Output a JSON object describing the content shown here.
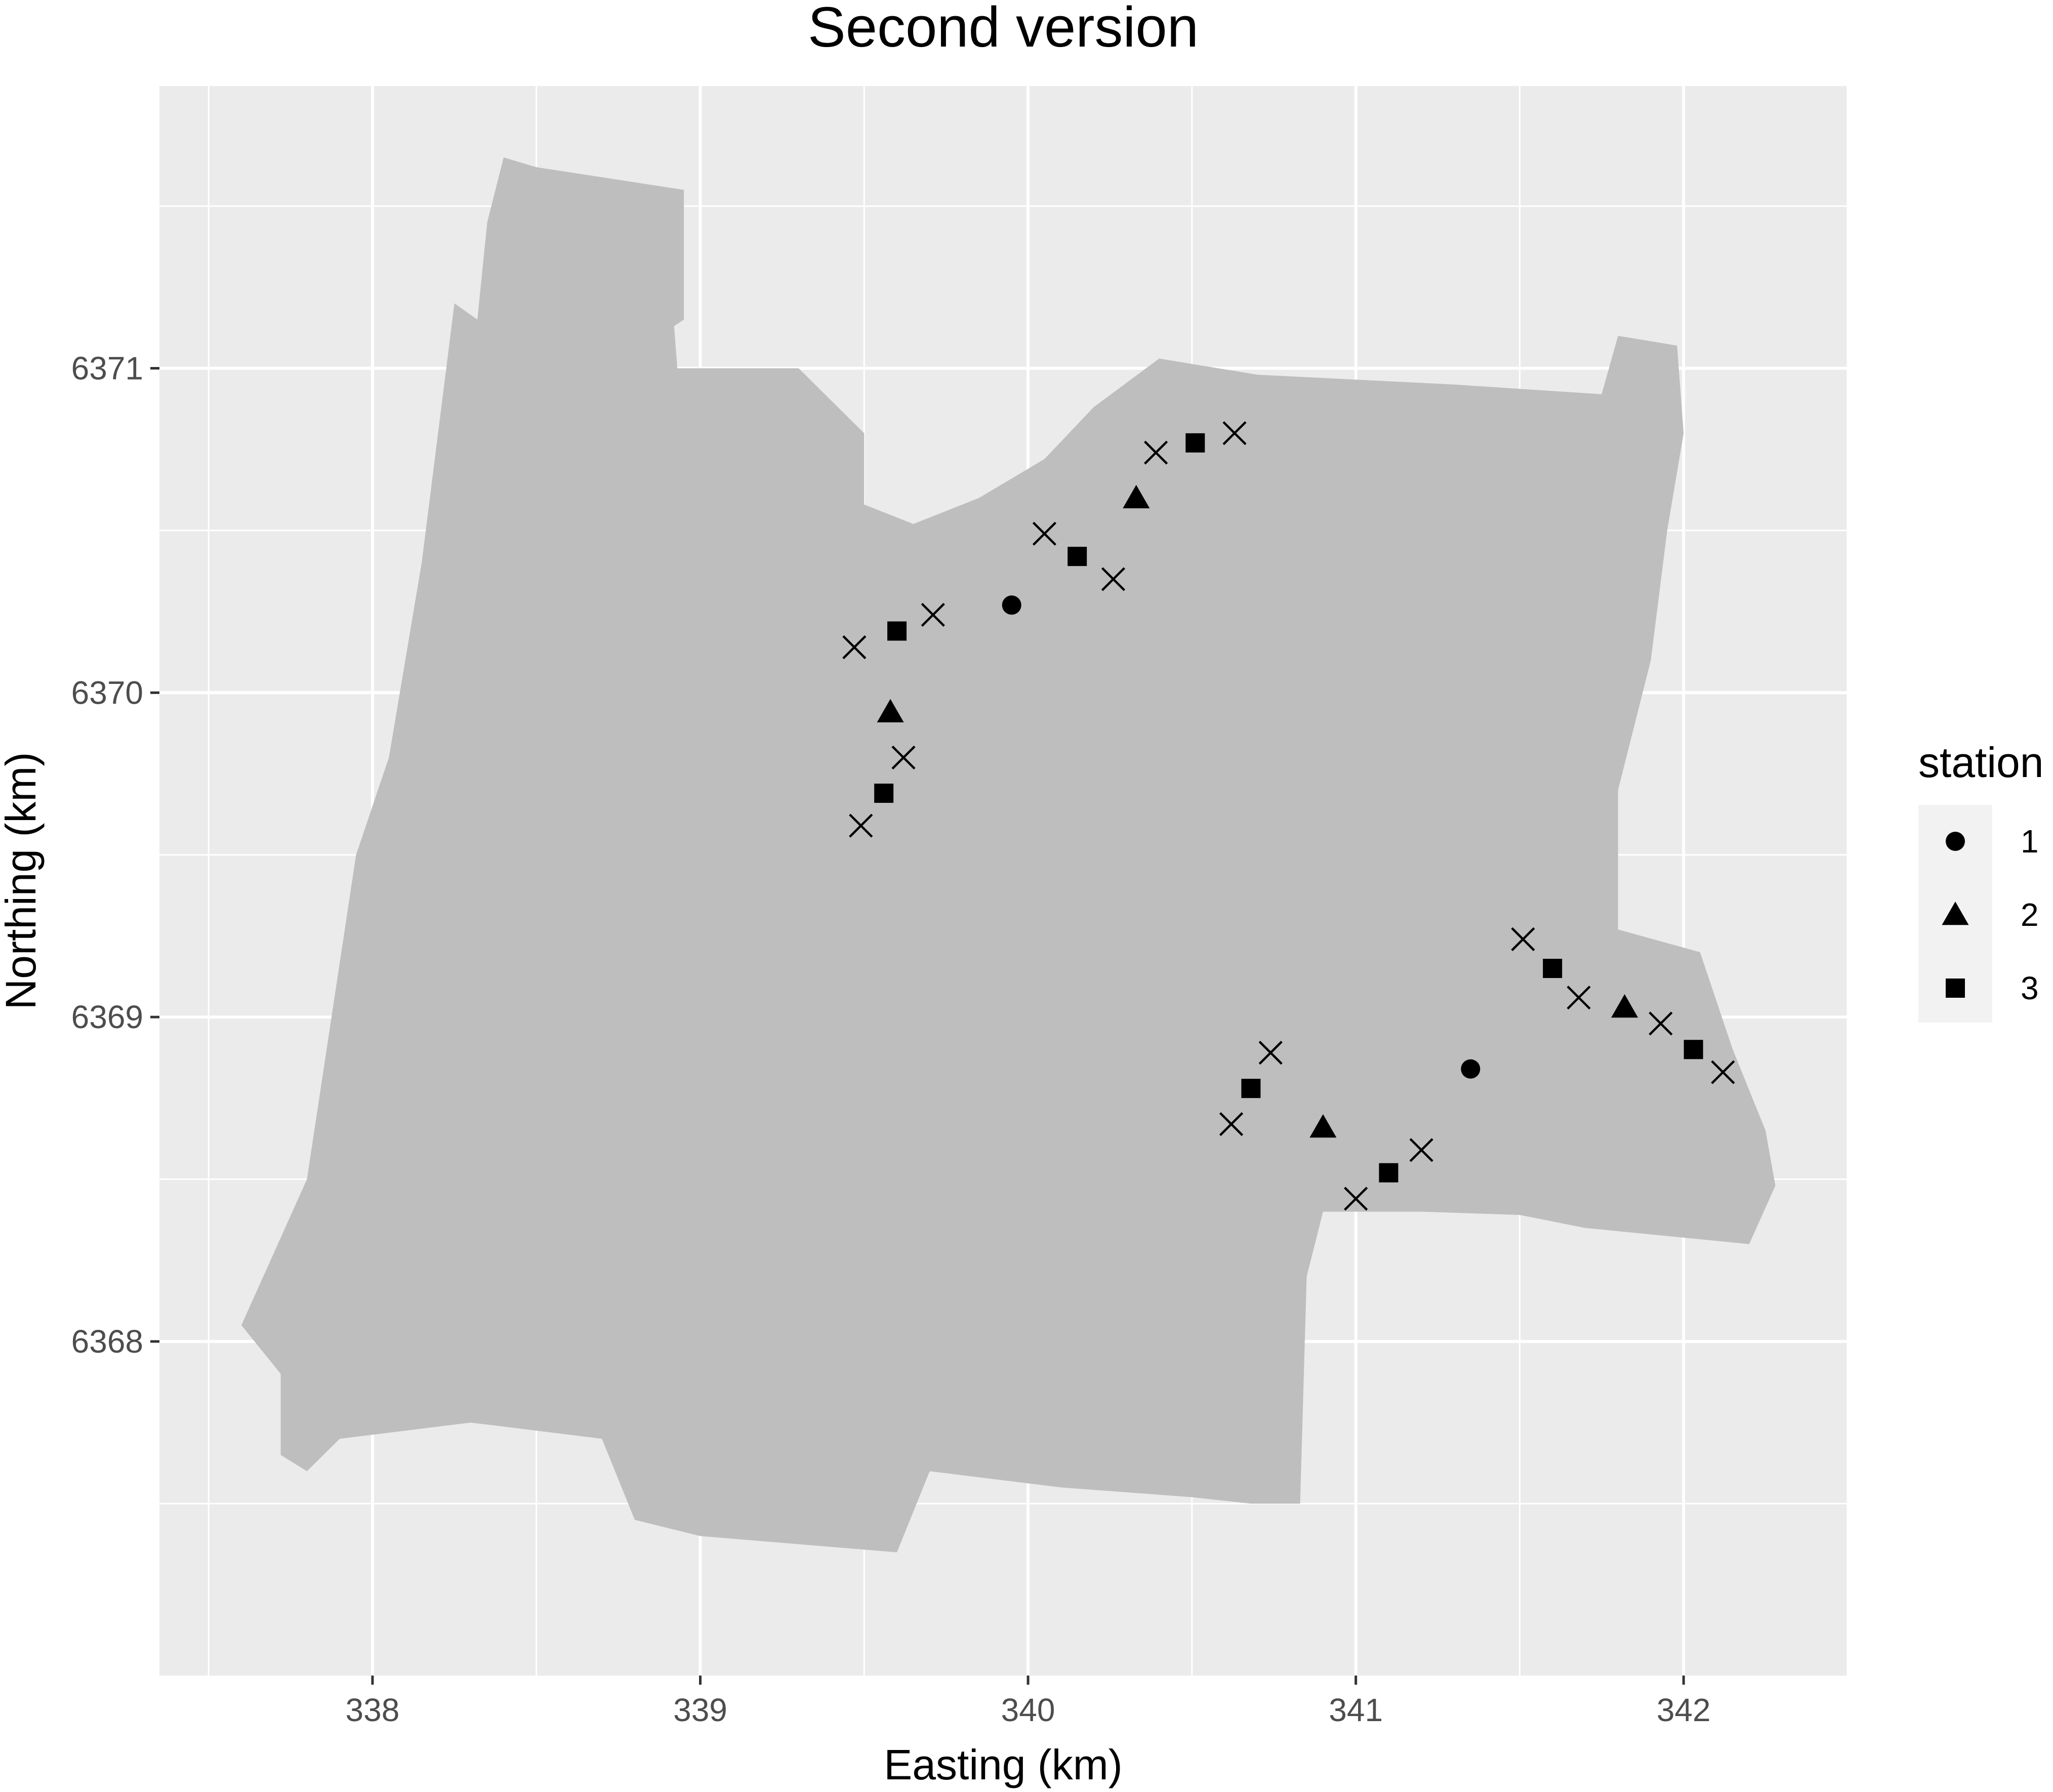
{
  "chart_data": {
    "type": "scatter",
    "title": "Second version",
    "xlabel": "Easting (km)",
    "ylabel": "Northing (km)",
    "xlim": [
      337.35,
      342.5
    ],
    "ylim": [
      6366.97,
      6371.87
    ],
    "x_ticks": [
      338,
      339,
      340,
      341,
      342
    ],
    "y_ticks": [
      6368,
      6369,
      6370,
      6371
    ],
    "grid": true,
    "legend": {
      "title": "station",
      "position": "right",
      "entries": [
        {
          "label": "1",
          "shape": "circle"
        },
        {
          "label": "2",
          "shape": "triangle"
        },
        {
          "label": "3",
          "shape": "square"
        }
      ]
    },
    "region": {
      "fill": "#bebebe",
      "outline": [
        [
          338.4,
          6371.65
        ],
        [
          338.5,
          6371.62
        ],
        [
          338.95,
          6371.55
        ],
        [
          338.95,
          6371.15
        ],
        [
          338.92,
          6371.13
        ],
        [
          338.93,
          6371.0
        ],
        [
          339.3,
          6371.0
        ],
        [
          339.5,
          6370.8
        ],
        [
          339.5,
          6370.58
        ],
        [
          339.65,
          6370.52
        ],
        [
          339.85,
          6370.6
        ],
        [
          340.05,
          6370.72
        ],
        [
          340.2,
          6370.88
        ],
        [
          340.4,
          6371.03
        ],
        [
          340.7,
          6370.98
        ],
        [
          341.3,
          6370.95
        ],
        [
          341.75,
          6370.92
        ],
        [
          341.8,
          6371.1
        ],
        [
          341.98,
          6371.07
        ],
        [
          342.0,
          6370.8
        ],
        [
          341.95,
          6370.5
        ],
        [
          341.9,
          6370.1
        ],
        [
          341.8,
          6369.7
        ],
        [
          341.8,
          6369.27
        ],
        [
          342.05,
          6369.2
        ],
        [
          342.15,
          6368.9
        ],
        [
          342.25,
          6368.65
        ],
        [
          342.28,
          6368.48
        ],
        [
          342.2,
          6368.3
        ],
        [
          341.7,
          6368.35
        ],
        [
          341.5,
          6368.39
        ],
        [
          341.2,
          6368.4
        ],
        [
          340.9,
          6368.4
        ],
        [
          340.85,
          6368.2
        ],
        [
          340.83,
          6367.5
        ],
        [
          340.68,
          6367.5
        ],
        [
          340.5,
          6367.52
        ],
        [
          340.1,
          6367.55
        ],
        [
          339.7,
          6367.6
        ],
        [
          339.6,
          6367.35
        ],
        [
          339.0,
          6367.4
        ],
        [
          338.8,
          6367.45
        ],
        [
          338.7,
          6367.7
        ],
        [
          338.3,
          6367.75
        ],
        [
          337.9,
          6367.7
        ],
        [
          337.8,
          6367.6
        ],
        [
          337.72,
          6367.65
        ],
        [
          337.72,
          6367.9
        ],
        [
          337.6,
          6368.05
        ],
        [
          337.8,
          6368.5
        ],
        [
          337.95,
          6369.5
        ],
        [
          338.05,
          6369.8
        ],
        [
          338.15,
          6370.4
        ],
        [
          338.25,
          6371.2
        ],
        [
          338.32,
          6371.15
        ],
        [
          338.35,
          6371.45
        ],
        [
          338.4,
          6371.65
        ]
      ]
    },
    "series": [
      {
        "label": "1",
        "shape": "circle",
        "points": [
          [
            339.95,
            6370.27
          ],
          [
            341.35,
            6368.84
          ]
        ]
      },
      {
        "label": "2",
        "shape": "triangle",
        "points": [
          [
            339.58,
            6369.94
          ],
          [
            340.33,
            6370.6
          ],
          [
            340.9,
            6368.66
          ],
          [
            341.82,
            6369.03
          ]
        ]
      },
      {
        "label": "3",
        "shape": "square",
        "points": [
          [
            339.6,
            6370.19
          ],
          [
            340.15,
            6370.42
          ],
          [
            340.51,
            6370.77
          ],
          [
            339.56,
            6369.69
          ],
          [
            340.68,
            6368.78
          ],
          [
            341.1,
            6368.52
          ],
          [
            341.6,
            6369.15
          ],
          [
            342.03,
            6368.9
          ]
        ]
      },
      {
        "label": "",
        "shape": "cross",
        "points": [
          [
            339.47,
            6370.14
          ],
          [
            339.71,
            6370.24
          ],
          [
            339.62,
            6369.8
          ],
          [
            339.49,
            6369.59
          ],
          [
            340.05,
            6370.49
          ],
          [
            340.26,
            6370.35
          ],
          [
            340.39,
            6370.74
          ],
          [
            340.63,
            6370.8
          ],
          [
            340.62,
            6368.67
          ],
          [
            340.74,
            6368.89
          ],
          [
            341.0,
            6368.44
          ],
          [
            341.2,
            6368.59
          ],
          [
            341.51,
            6369.24
          ],
          [
            341.68,
            6369.06
          ],
          [
            341.93,
            6368.98
          ],
          [
            342.12,
            6368.83
          ]
        ]
      }
    ]
  }
}
